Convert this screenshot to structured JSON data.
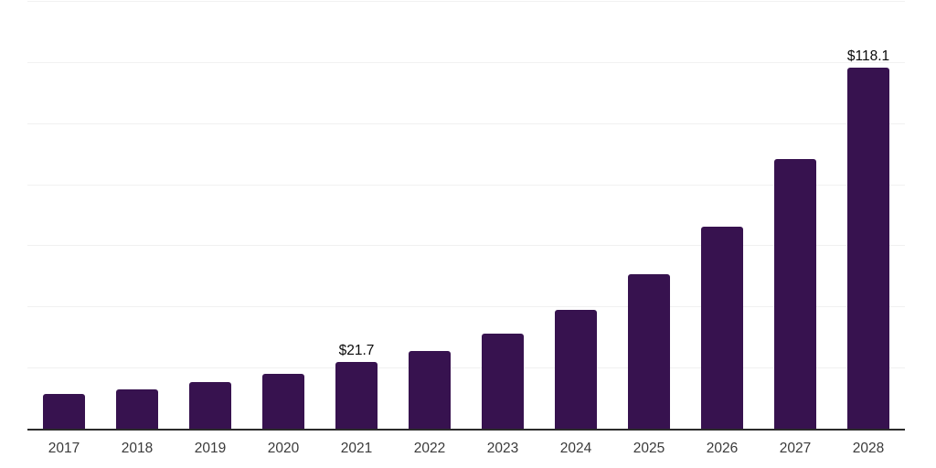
{
  "chart_data": {
    "type": "bar",
    "title": "",
    "xlabel": "",
    "ylabel": "",
    "categories": [
      "2017",
      "2018",
      "2019",
      "2020",
      "2021",
      "2022",
      "2023",
      "2024",
      "2025",
      "2026",
      "2027",
      "2028"
    ],
    "values": [
      11.3,
      13.0,
      15.4,
      18.1,
      21.7,
      25.3,
      31.2,
      39.0,
      50.5,
      66.2,
      88.2,
      118.1
    ],
    "value_labels": [
      "",
      "",
      "",
      "",
      "$21.7",
      "",
      "",
      "",
      "",
      "",
      "",
      "$118.1"
    ],
    "ylim": [
      0,
      140
    ],
    "gridline_step": 20,
    "grid": true,
    "legend_position": "none",
    "y_tick_labels_visible": false,
    "colors": {
      "bar": "#37124f",
      "axis_line": "#2b2b2b",
      "gridline": "#f1f1f1",
      "tick_label": "#3a3a3a",
      "value_label": "#0a0a0a",
      "background": "#ffffff"
    }
  }
}
